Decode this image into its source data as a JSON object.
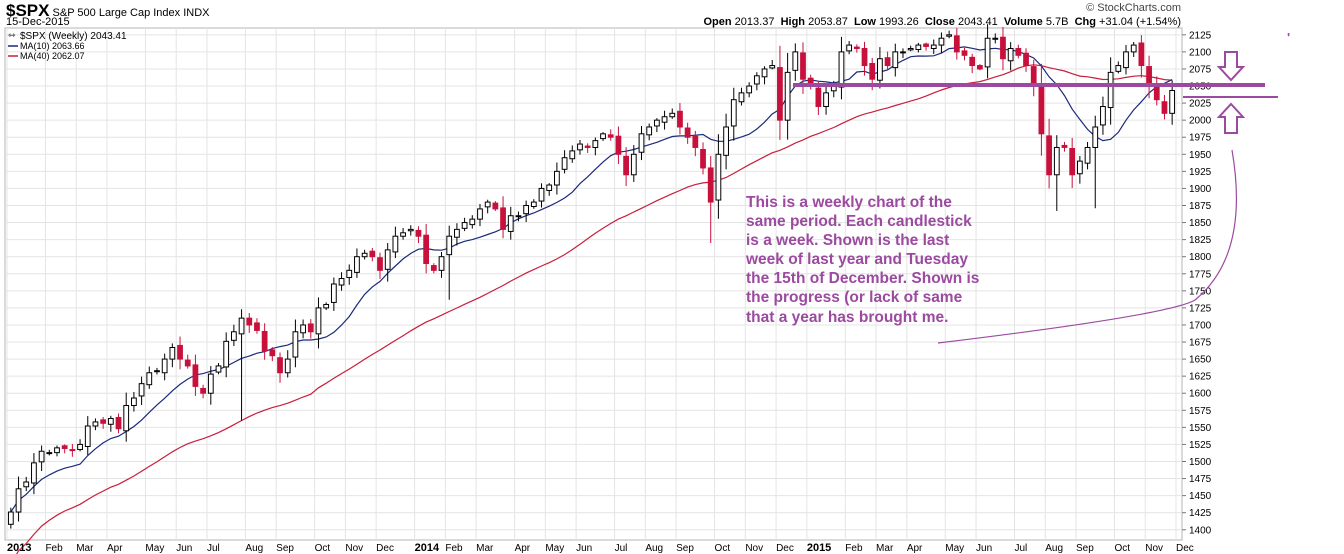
{
  "header": {
    "ticker": "$SPX",
    "name": "S&P 500 Large Cap Index",
    "exchange": "INDX",
    "date": "15-Dec-2015",
    "copyright": "© StockCharts.com",
    "open_label": "Open",
    "open": "2013.37",
    "high_label": "High",
    "high": "2053.87",
    "low_label": "Low",
    "low": "1993.26",
    "close_label": "Close",
    "close": "2043.41",
    "volume_label": "Volume",
    "volume": "5.7B",
    "chg_label": "Chg",
    "chg": "+31.04 (+1.54%)"
  },
  "legend": [
    {
      "label": "$SPX (Weekly) 2043.41",
      "color": "#000000"
    },
    {
      "label": "MA(10) 2063.66",
      "color": "#1b2a7a"
    },
    {
      "label": "MA(40) 2062.07",
      "color": "#c81e3c"
    }
  ],
  "annotation": "This is a weekly chart of the same period. Each candlestick is a week. Shown is the last week of last year and Tuesday the 15th of December. Shown is the progress (or lack of same that a year has brought me.",
  "colors": {
    "up": "#000000",
    "down": "#c8103c",
    "ma10": "#1b2a7a",
    "ma40": "#c81e3c",
    "annot": "#9b4aa0",
    "grid": "#e4e4e4"
  },
  "chart_data": {
    "type": "candlestick",
    "title": "$SPX S&P 500 Large Cap Index INDX",
    "period": "Weekly",
    "ylim": [
      1385,
      2135
    ],
    "y_ticks": [
      1400,
      1425,
      1450,
      1475,
      1500,
      1525,
      1550,
      1575,
      1600,
      1625,
      1650,
      1675,
      1700,
      1725,
      1750,
      1775,
      1800,
      1825,
      1850,
      1875,
      1900,
      1925,
      1950,
      1975,
      2000,
      2025,
      2050,
      2075,
      2100,
      2125
    ],
    "x_ticks": [
      {
        "label": "2013",
        "week": 0,
        "bold": true
      },
      {
        "label": "Feb",
        "week": 5
      },
      {
        "label": "Mar",
        "week": 9
      },
      {
        "label": "Apr",
        "week": 13
      },
      {
        "label": "May",
        "week": 18
      },
      {
        "label": "Jun",
        "week": 22
      },
      {
        "label": "Jul",
        "week": 26
      },
      {
        "label": "Aug",
        "week": 31
      },
      {
        "label": "Sep",
        "week": 35
      },
      {
        "label": "Oct",
        "week": 40
      },
      {
        "label": "Nov",
        "week": 44
      },
      {
        "label": "Dec",
        "week": 48
      },
      {
        "label": "2014",
        "week": 53,
        "bold": true
      },
      {
        "label": "Feb",
        "week": 57
      },
      {
        "label": "Mar",
        "week": 61
      },
      {
        "label": "Apr",
        "week": 66
      },
      {
        "label": "May",
        "week": 70
      },
      {
        "label": "Jun",
        "week": 74
      },
      {
        "label": "Jul",
        "week": 79
      },
      {
        "label": "Aug",
        "week": 83
      },
      {
        "label": "Sep",
        "week": 87
      },
      {
        "label": "Oct",
        "week": 92
      },
      {
        "label": "Nov",
        "week": 96
      },
      {
        "label": "Dec",
        "week": 100
      },
      {
        "label": "2015",
        "week": 104,
        "bold": true
      },
      {
        "label": "Feb",
        "week": 109
      },
      {
        "label": "Mar",
        "week": 113
      },
      {
        "label": "Apr",
        "week": 117
      },
      {
        "label": "May",
        "week": 122
      },
      {
        "label": "Jun",
        "week": 126
      },
      {
        "label": "Jul",
        "week": 131
      },
      {
        "label": "Aug",
        "week": 135
      },
      {
        "label": "Sep",
        "week": 139
      },
      {
        "label": "Oct",
        "week": 144
      },
      {
        "label": "Nov",
        "week": 148
      },
      {
        "label": "Dec",
        "week": 152
      }
    ],
    "closes": [
      1426,
      1460,
      1470,
      1498,
      1515,
      1513,
      1520,
      1519,
      1516,
      1525,
      1552,
      1558,
      1556,
      1563,
      1548,
      1582,
      1593,
      1614,
      1630,
      1633,
      1650,
      1667,
      1650,
      1640,
      1610,
      1600,
      1628,
      1640,
      1676,
      1690,
      1710,
      1700,
      1692,
      1662,
      1655,
      1630,
      1650,
      1690,
      1700,
      1690,
      1725,
      1730,
      1760,
      1768,
      1780,
      1800,
      1805,
      1800,
      1780,
      1810,
      1830,
      1835,
      1840,
      1830,
      1790,
      1780,
      1800,
      1830,
      1840,
      1850,
      1855,
      1870,
      1880,
      1870,
      1840,
      1860,
      1860,
      1875,
      1880,
      1900,
      1905,
      1925,
      1945,
      1955,
      1965,
      1960,
      1970,
      1980,
      1975,
      1950,
      1920,
      1950,
      1980,
      1990,
      2000,
      2005,
      2010,
      1990,
      1975,
      1960,
      1930,
      1880,
      1950,
      1990,
      2030,
      2040,
      2050,
      2065,
      2075,
      2080,
      2000,
      2070,
      2100,
      2060,
      2050,
      2020,
      2040,
      2050,
      2100,
      2110,
      2105,
      2080,
      2060,
      2090,
      2080,
      2100,
      2100,
      2105,
      2110,
      2108,
      2110,
      2120,
      2125,
      2100,
      2095,
      2080,
      2075,
      2120,
      2120,
      2090,
      2105,
      2095,
      2080,
      2050,
      1980,
      1920,
      1960,
      1960,
      1920,
      1940,
      1960,
      1990,
      2020,
      2070,
      2080,
      2100,
      2110,
      2080,
      2050,
      2030,
      2010,
      2043.41
    ],
    "ma10_final": 2063.66,
    "ma40_final": 2062.07,
    "resistance_level": 2062
  }
}
